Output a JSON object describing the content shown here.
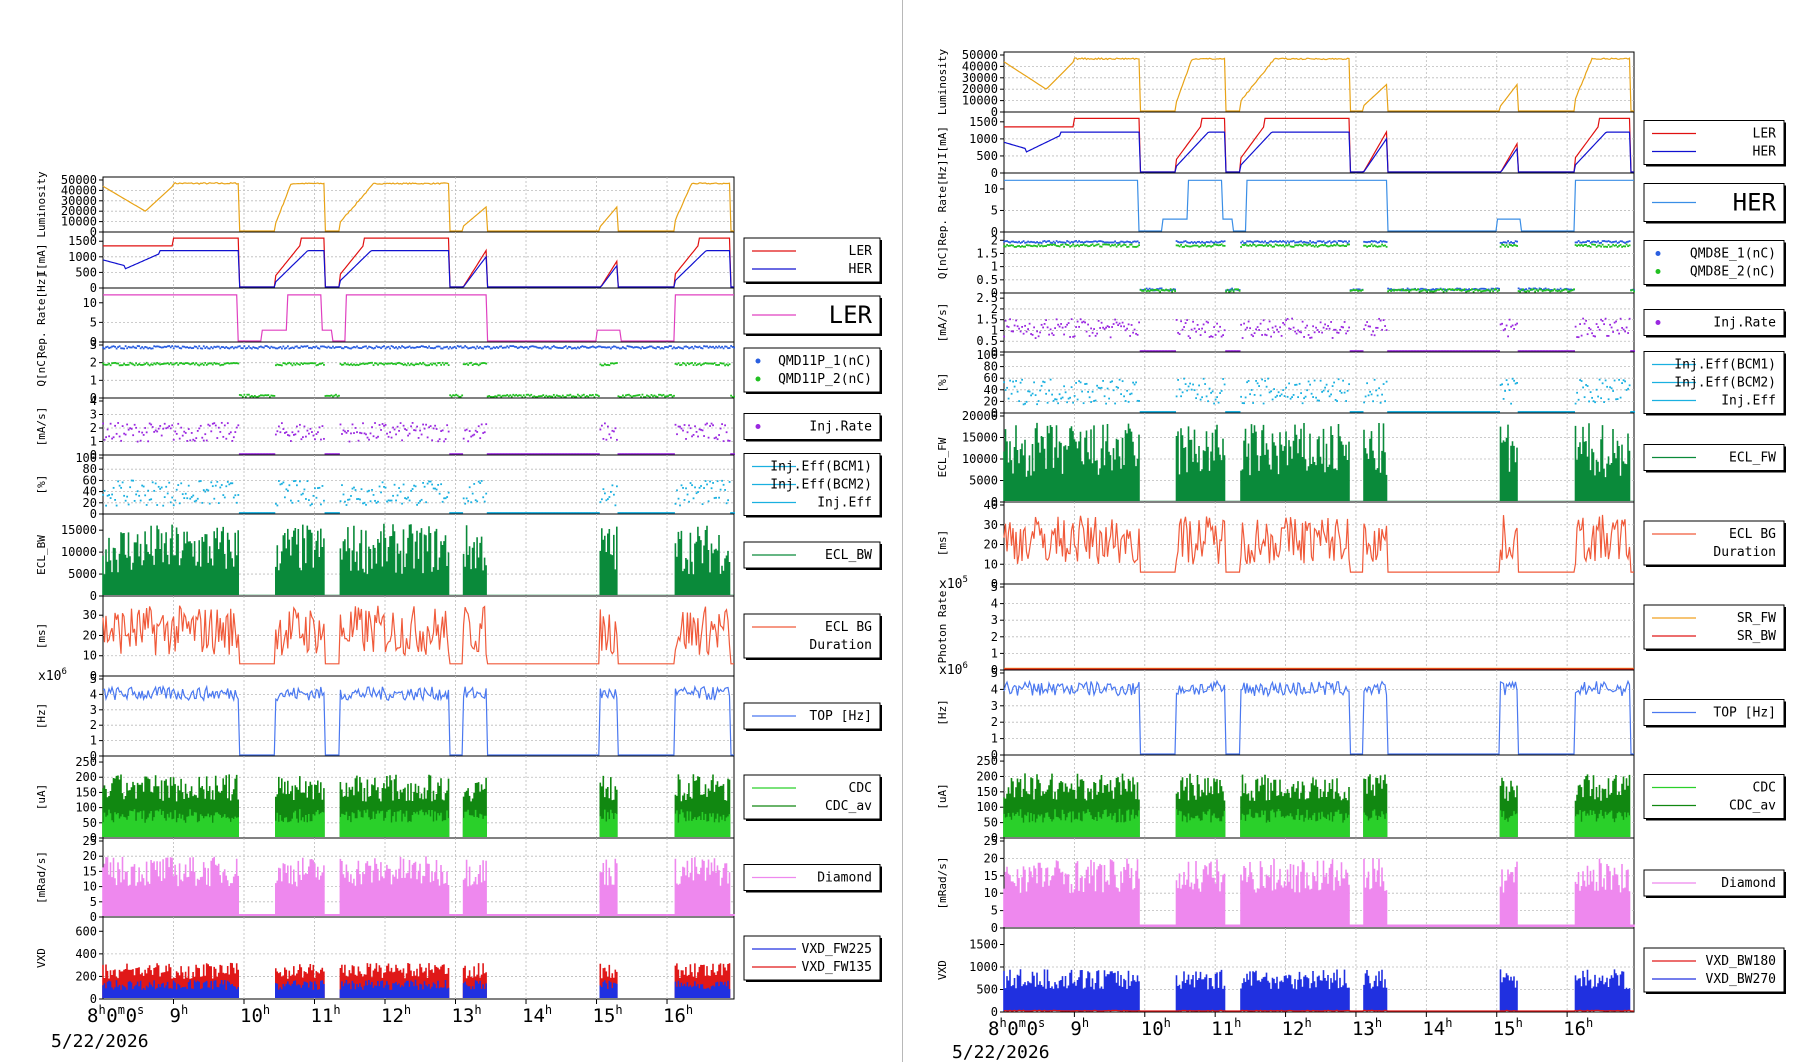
{
  "date_label": "5/22/2026",
  "time_axis": {
    "start_label": "8h0m0s",
    "hour_labels": [
      "9",
      "10",
      "11",
      "12",
      "13",
      "14",
      "15",
      "16"
    ],
    "xlim": [
      8.0,
      16.95
    ]
  },
  "colors": {
    "luminosity": "#e8a317",
    "ler": "#e01010",
    "her": "#1010d0",
    "rep_ler": "#e040c0",
    "rep_her": "#3a8ee6",
    "q1": "#2a5fe0",
    "q2": "#22c022",
    "injrate": "#9a28e0",
    "injeff": "#1ab0e0",
    "ecl": "#0a8a3a",
    "eclbg": "#f05a3a",
    "top": "#4a78f0",
    "cdc": "#2ad02a",
    "cdc_av": "#118811",
    "diamond": "#ee88ee",
    "vxd_a": "#2030e0",
    "vxd_b": "#e01818",
    "sr_fw": "#f0a020",
    "sr_bw": "#e01818"
  },
  "chart_data": [
    {
      "name": "left",
      "type": "line",
      "panels": [
        {
          "id": "lum",
          "ylabel": "Luminosity",
          "ylim": [
            0,
            50000
          ],
          "ticks": [
            "50000",
            "40000",
            "30000",
            "20000",
            "10000",
            "0"
          ],
          "legend": []
        },
        {
          "id": "cur",
          "ylabel": "I[mA]",
          "ylim": [
            0,
            1700
          ],
          "ticks": [
            "1500",
            "1000",
            "500",
            "0"
          ],
          "legend": [
            {
              "label": "LER",
              "color": "#e01010"
            },
            {
              "label": "HER",
              "color": "#1010d0"
            }
          ]
        },
        {
          "id": "rep",
          "ylabel": "Rep. Rate[Hz]",
          "ylim": [
            0,
            13
          ],
          "ticks": [
            "10",
            "5",
            "0"
          ],
          "legend": [
            {
              "label": "LER",
              "color": "#e040c0",
              "big": true
            }
          ]
        },
        {
          "id": "q",
          "ylabel": "Q[nC]",
          "ylim": [
            0,
            3
          ],
          "ticks": [
            "3",
            "2",
            "1",
            "0"
          ],
          "legend": [
            {
              "label": "QMD11P_1(nC)",
              "color": "#2a5fe0",
              "dot": true
            },
            {
              "label": "QMD11P_2(nC)",
              "color": "#22c022",
              "dot": true
            }
          ]
        },
        {
          "id": "inj",
          "ylabel": "[mA/s]",
          "ylim": [
            0,
            4
          ],
          "ticks": [
            "4",
            "3",
            "2",
            "1",
            "0"
          ],
          "legend": [
            {
              "label": "Inj.Rate",
              "color": "#9a28e0",
              "dot": true
            }
          ]
        },
        {
          "id": "eff",
          "ylabel": "[%]",
          "ylim": [
            0,
            100
          ],
          "ticks": [
            "100",
            "80",
            "60",
            "40",
            "20",
            "0"
          ],
          "legend": [
            {
              "label": "Inj.Eff(BCM1)",
              "color": "#1ab0e0"
            },
            {
              "label": "Inj.Eff(BCM2)",
              "color": "#1ab0e0"
            },
            {
              "label": "Inj.Eff",
              "color": "#1ab0e0"
            }
          ]
        },
        {
          "id": "ecl",
          "ylabel": "ECL_BW",
          "ylim": [
            0,
            18000
          ],
          "ticks": [
            "15000",
            "10000",
            "5000",
            "0"
          ],
          "legend": [
            {
              "label": "ECL_BW",
              "color": "#0a8a3a"
            }
          ]
        },
        {
          "id": "bg",
          "ylabel": "[ms]",
          "ylim": [
            0,
            38
          ],
          "ticks": [
            "30",
            "20",
            "10",
            "0"
          ],
          "legend": [
            {
              "label": "ECL BG",
              "color": "#f05a3a"
            },
            {
              "label": "Duration",
              "color": "#f05a3a",
              "nosample": true
            }
          ]
        },
        {
          "id": "top",
          "ylabel": "[Hz]",
          "ylim": [
            0,
            5
          ],
          "ticks": [
            "5",
            "4",
            "3",
            "2",
            "1",
            "0"
          ],
          "exponent": "x10",
          "exp": "6",
          "legend": [
            {
              "label": "TOP [Hz]",
              "color": "#4a78f0"
            }
          ]
        },
        {
          "id": "cdc",
          "ylabel": "[uA]",
          "ylim": [
            0,
            260
          ],
          "ticks": [
            "250",
            "200",
            "150",
            "100",
            "50",
            "0"
          ],
          "legend": [
            {
              "label": "CDC",
              "color": "#2ad02a"
            },
            {
              "label": "CDC_av",
              "color": "#118811"
            }
          ]
        },
        {
          "id": "dia",
          "ylabel": "[mRad/s]",
          "ylim": [
            0,
            25
          ],
          "ticks": [
            "25",
            "20",
            "15",
            "10",
            "5",
            "0"
          ],
          "legend": [
            {
              "label": "Diamond",
              "color": "#ee88ee"
            }
          ]
        },
        {
          "id": "vxd",
          "ylabel": "VXD",
          "ylim": [
            0,
            700
          ],
          "ticks": [
            "600",
            "400",
            "200",
            "0"
          ],
          "legend": [
            {
              "label": "VXD_FW225",
              "color": "#2030e0"
            },
            {
              "label": "VXD_FW135",
              "color": "#e01818"
            }
          ]
        }
      ]
    },
    {
      "name": "right",
      "type": "line",
      "panels": [
        {
          "id": "lum",
          "ylabel": "Luminosity",
          "ylim": [
            0,
            50000
          ],
          "ticks": [
            "50000",
            "40000",
            "30000",
            "20000",
            "10000",
            "0"
          ],
          "legend": []
        },
        {
          "id": "cur",
          "ylabel": "I[mA]",
          "ylim": [
            0,
            1700
          ],
          "ticks": [
            "1500",
            "1000",
            "500",
            "0"
          ],
          "legend": [
            {
              "label": "LER",
              "color": "#e01010"
            },
            {
              "label": "HER",
              "color": "#1010d0"
            }
          ]
        },
        {
          "id": "rep",
          "ylabel": "Rep. Rate[Hz]",
          "ylim": [
            0,
            13
          ],
          "ticks": [
            "10",
            "5",
            "0"
          ],
          "legend": [
            {
              "label": "HER",
              "color": "#3a8ee6",
              "big": true
            }
          ]
        },
        {
          "id": "q",
          "ylabel": "Q[nC]",
          "ylim": [
            0,
            2.2
          ],
          "ticks": [
            "2",
            "1.5",
            "1",
            "0.5",
            "0"
          ],
          "legend": [
            {
              "label": "QMD8E_1(nC)",
              "color": "#2a5fe0",
              "dot": true
            },
            {
              "label": "QMD8E_2(nC)",
              "color": "#22c022",
              "dot": true
            }
          ]
        },
        {
          "id": "inj",
          "ylabel": "[mA/s]",
          "ylim": [
            0,
            2.6
          ],
          "ticks": [
            "2.5",
            "2",
            "1.5",
            "1",
            "0.5",
            "0"
          ],
          "legend": [
            {
              "label": "Inj.Rate",
              "color": "#9a28e0",
              "dot": true
            }
          ]
        },
        {
          "id": "eff",
          "ylabel": "[%]",
          "ylim": [
            0,
            100
          ],
          "ticks": [
            "100",
            "80",
            "60",
            "40",
            "20",
            "0"
          ],
          "legend": [
            {
              "label": "Inj.Eff(BCM1)",
              "color": "#1ab0e0"
            },
            {
              "label": "Inj.Eff(BCM2)",
              "color": "#1ab0e0"
            },
            {
              "label": "Inj.Eff",
              "color": "#1ab0e0"
            }
          ]
        },
        {
          "id": "ecl",
          "ylabel": "ECL_FW",
          "ylim": [
            0,
            20000
          ],
          "ticks": [
            "20000",
            "15000",
            "10000",
            "5000",
            "0"
          ],
          "legend": [
            {
              "label": "ECL_FW",
              "color": "#0a8a3a"
            }
          ]
        },
        {
          "id": "bg",
          "ylabel": "[ms]",
          "ylim": [
            0,
            40
          ],
          "ticks": [
            "40",
            "30",
            "20",
            "10",
            "0"
          ],
          "legend": [
            {
              "label": "ECL BG",
              "color": "#f05a3a"
            },
            {
              "label": "Duration",
              "color": "#f05a3a",
              "nosample": true
            }
          ]
        },
        {
          "id": "photon",
          "ylabel": "Photon Rate",
          "ylim": [
            0,
            5
          ],
          "ticks": [
            "5",
            "4",
            "3",
            "2",
            "1",
            "0"
          ],
          "exponent": "x10",
          "exp": "5",
          "legend": [
            {
              "label": "SR_FW",
              "color": "#f0a020"
            },
            {
              "label": "SR_BW",
              "color": "#e01818"
            }
          ]
        },
        {
          "id": "top",
          "ylabel": "[Hz]",
          "ylim": [
            0,
            5
          ],
          "ticks": [
            "5",
            "4",
            "3",
            "2",
            "1",
            "0"
          ],
          "exponent": "x10",
          "exp": "6",
          "legend": [
            {
              "label": "TOP [Hz]",
              "color": "#4a78f0"
            }
          ]
        },
        {
          "id": "cdc",
          "ylabel": "[uA]",
          "ylim": [
            0,
            260
          ],
          "ticks": [
            "250",
            "200",
            "150",
            "100",
            "50",
            "0"
          ],
          "legend": [
            {
              "label": "CDC",
              "color": "#2ad02a"
            },
            {
              "label": "CDC_av",
              "color": "#118811"
            }
          ]
        },
        {
          "id": "dia",
          "ylabel": "[mRad/s]",
          "ylim": [
            0,
            25
          ],
          "ticks": [
            "25",
            "20",
            "15",
            "10",
            "5",
            "0"
          ],
          "legend": [
            {
              "label": "Diamond",
              "color": "#ee88ee"
            }
          ]
        },
        {
          "id": "vxd",
          "ylabel": "VXD",
          "ylim": [
            0,
            1800
          ],
          "ticks": [
            "1500",
            "1000",
            "500",
            "0"
          ],
          "legend": [
            {
              "label": "VXD_BW180",
              "color": "#e01818"
            },
            {
              "label": "VXD_BW270",
              "color": "#2030e0"
            }
          ]
        }
      ]
    }
  ]
}
